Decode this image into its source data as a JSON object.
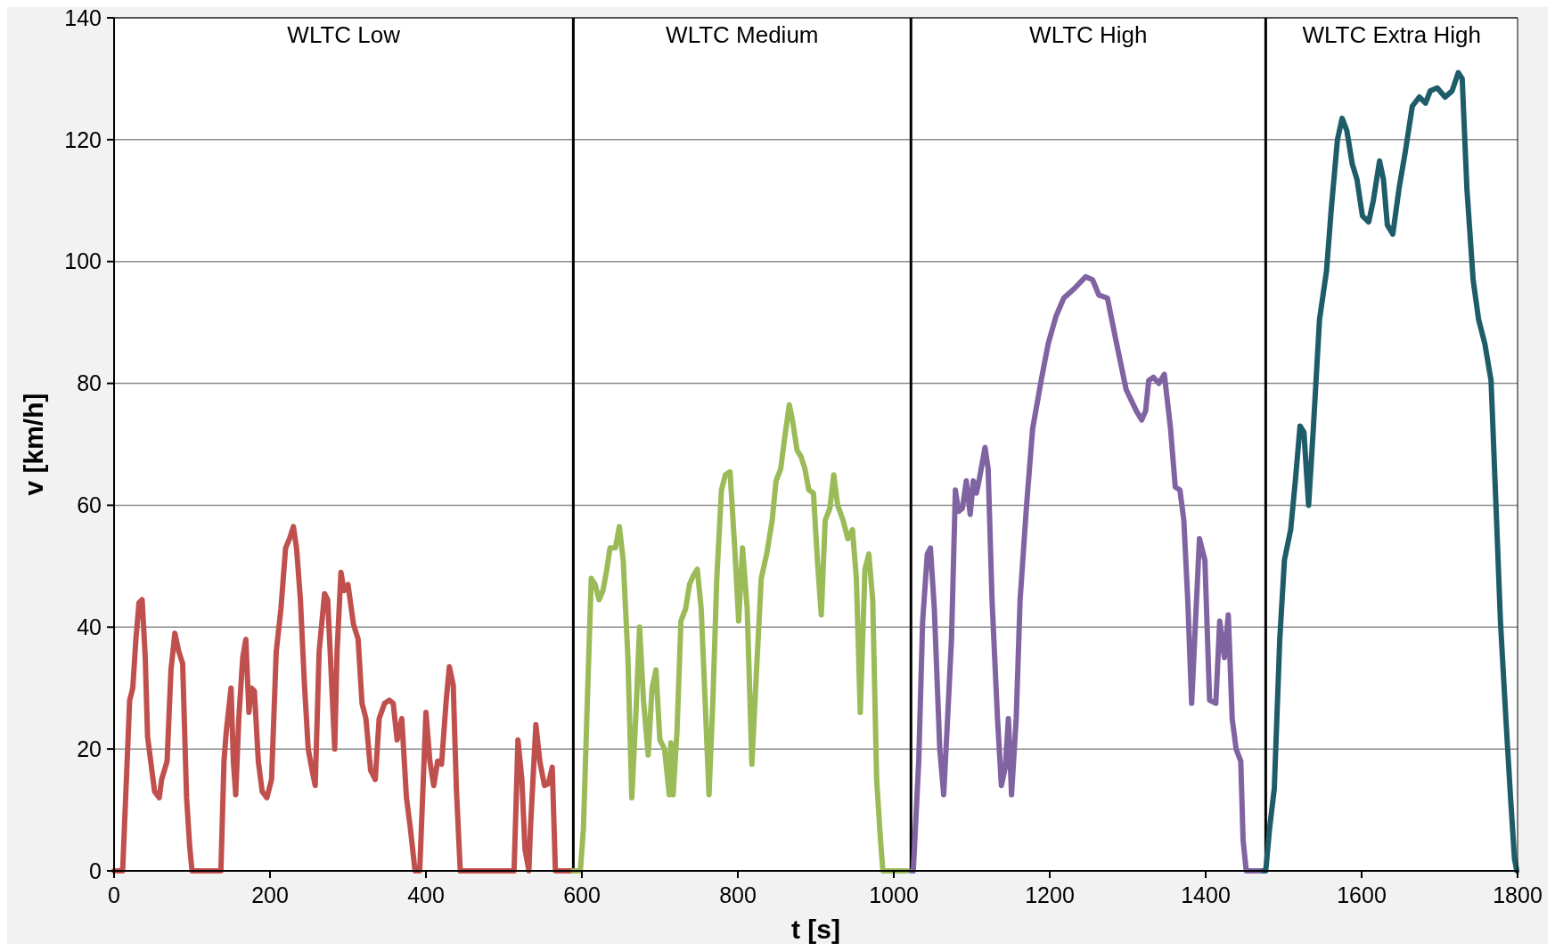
{
  "chart_data": {
    "type": "line",
    "xlabel": "t [s]",
    "ylabel": "v [km/h]",
    "xlim": [
      0,
      1800
    ],
    "xticks": [
      0,
      200,
      400,
      600,
      800,
      1000,
      1200,
      1400,
      1600,
      1800
    ],
    "ylim": [
      0,
      140
    ],
    "yticks": [
      0,
      20,
      40,
      60,
      80,
      100,
      120,
      140
    ],
    "grid": "y",
    "marker": "none",
    "line_style": "solid",
    "series": [
      {
        "color": "#c0504d",
        "x": [
          0,
          11,
          20,
          24,
          28,
          32,
          36,
          40,
          43,
          47,
          52,
          58,
          61,
          68,
          73,
          78,
          83,
          88,
          93,
          97,
          100,
          137,
          141,
          144,
          150,
          153,
          156,
          160,
          165,
          169,
          173,
          176,
          180,
          185,
          190,
          196,
          202,
          208,
          214,
          220,
          225,
          230,
          234,
          239,
          244,
          249,
          254,
          258,
          263,
          270,
          274,
          279,
          283,
          286,
          291,
          295,
          300,
          307,
          313,
          318,
          323,
          329,
          335,
          340,
          347,
          353,
          358,
          363,
          369,
          375,
          380,
          386,
          392,
          400,
          405,
          410,
          415,
          420,
          426,
          430,
          435,
          439,
          444,
          513,
          518,
          523,
          527,
          532,
          534,
          541,
          546,
          552,
          557,
          562,
          566,
          588
        ],
        "values": [
          0,
          0,
          28,
          30,
          38,
          44,
          44.5,
          35,
          22,
          18,
          13,
          12,
          15,
          18,
          33,
          39,
          36,
          34,
          12,
          4,
          0,
          0,
          18,
          23,
          30,
          18,
          12.5,
          25,
          35,
          38,
          26,
          30,
          29.5,
          18,
          13,
          12,
          15,
          36,
          43,
          53,
          54.5,
          56.5,
          53,
          44.5,
          31,
          20,
          16.5,
          14,
          36,
          45.5,
          44.5,
          31,
          20,
          36,
          49,
          46,
          47,
          40.5,
          38,
          27.5,
          25,
          16.5,
          15,
          25,
          27.5,
          28,
          27.5,
          21.5,
          25,
          12,
          7,
          0,
          0,
          26,
          18,
          14,
          18,
          17.5,
          28,
          33.5,
          30.5,
          13.5,
          0,
          0,
          21.5,
          15,
          3.6,
          0,
          7,
          24,
          18,
          14,
          14.3,
          17,
          0,
          0
        ]
      },
      {
        "color": "#9bbb59",
        "x": [
          589,
          598,
          602,
          607,
          612,
          617,
          622,
          627,
          632,
          636,
          643,
          648,
          653,
          659,
          664,
          669,
          674,
          679,
          685,
          690,
          695,
          700,
          706,
          712,
          714,
          717,
          722,
          727,
          733,
          738,
          743,
          748,
          753,
          758,
          763,
          768,
          773,
          779,
          784,
          790,
          796,
          801,
          806,
          812,
          818,
          824,
          830,
          837,
          844,
          849,
          855,
          860,
          866,
          870,
          876,
          881,
          886,
          891,
          897,
          902,
          907,
          912,
          918,
          923,
          928,
          935,
          941,
          947,
          952,
          957,
          963,
          968,
          973,
          978,
          983,
          986,
          1017
        ],
        "values": [
          0,
          0,
          7,
          28,
          48,
          47,
          44.5,
          46,
          49.5,
          53,
          53,
          56.5,
          51,
          35,
          12,
          25,
          40,
          28,
          19,
          30,
          33,
          21.5,
          20,
          12.5,
          21,
          12.5,
          23,
          41,
          43,
          47,
          48.5,
          49.5,
          43,
          28,
          12.5,
          28,
          48,
          62.5,
          65,
          65.5,
          53,
          41,
          53,
          43,
          17.5,
          33,
          48,
          52,
          57.5,
          64,
          66,
          71,
          76.5,
          74,
          69,
          68,
          66,
          62.5,
          62,
          51,
          42,
          57.5,
          59.5,
          65,
          60,
          57.5,
          54.5,
          56,
          48,
          26,
          49.5,
          52,
          44.5,
          15,
          5,
          0,
          0
        ]
      },
      {
        "color": "#8064a2",
        "x": [
          1022,
          1025,
          1032,
          1037,
          1043,
          1047,
          1052,
          1059,
          1064,
          1069,
          1074,
          1079,
          1083,
          1088,
          1093,
          1098,
          1102,
          1106,
          1110,
          1117,
          1121,
          1126,
          1133,
          1138,
          1143,
          1147,
          1151,
          1157,
          1162,
          1170,
          1178,
          1189,
          1198,
          1208,
          1218,
          1231,
          1246,
          1255,
          1263,
          1274,
          1285,
          1298,
          1311,
          1318,
          1323,
          1327,
          1333,
          1340,
          1347,
          1355,
          1361,
          1367,
          1372,
          1377,
          1382,
          1387,
          1392,
          1399,
          1405,
          1413,
          1418,
          1424,
          1429,
          1434,
          1439,
          1445,
          1448,
          1452,
          1472
        ],
        "values": [
          0,
          0,
          18,
          41,
          52,
          53,
          43,
          20,
          12.5,
          25,
          38,
          62.5,
          59,
          59.5,
          64,
          58.5,
          64,
          62,
          64.5,
          69.5,
          66,
          44.5,
          25,
          14,
          17,
          25,
          12.5,
          25,
          44.5,
          59.5,
          72.5,
          80.5,
          86.5,
          91,
          94,
          95.5,
          97.5,
          97,
          94.5,
          94,
          87,
          79,
          75.5,
          74,
          75.5,
          80.5,
          81,
          80,
          81.5,
          72.5,
          63,
          62.5,
          57.5,
          44.5,
          27.5,
          41,
          54.5,
          51,
          28,
          27.5,
          41,
          35,
          42,
          25,
          20,
          18,
          5,
          0,
          0
        ]
      },
      {
        "color": "#1f5c6a",
        "x": [
          1474,
          1477,
          1482,
          1488,
          1495,
          1501,
          1509,
          1515,
          1521,
          1526,
          1532,
          1538,
          1546,
          1555,
          1561,
          1569,
          1575,
          1581,
          1588,
          1594,
          1601,
          1609,
          1615,
          1623,
          1628,
          1633,
          1640,
          1648,
          1656,
          1665,
          1674,
          1682,
          1688,
          1697,
          1707,
          1716,
          1724,
          1729,
          1735,
          1743,
          1750,
          1758,
          1766,
          1772,
          1778,
          1785,
          1791,
          1796,
          1799
        ],
        "values": [
          0,
          0,
          7,
          13.5,
          38,
          51,
          56,
          64,
          73,
          72,
          60,
          72.5,
          90.5,
          98.5,
          108.5,
          120,
          123.5,
          121.5,
          116,
          113.5,
          107.5,
          106.5,
          110,
          116.5,
          113.5,
          106,
          104.5,
          112,
          118,
          125.5,
          127,
          126,
          128,
          128.5,
          127,
          128,
          131,
          130,
          112,
          97,
          90.5,
          86.5,
          80.5,
          61,
          41,
          25,
          12,
          2,
          0
        ]
      }
    ],
    "ref_lines": [
      {
        "axis": "x",
        "value": 589,
        "color": "#000000"
      },
      {
        "axis": "x",
        "value": 1022,
        "color": "#000000"
      },
      {
        "axis": "x",
        "value": 1477,
        "color": "#000000"
      }
    ],
    "annotations": [
      "WLTC Low",
      "WLTC Medium",
      "WLTC High",
      "WLTC Extra High"
    ]
  }
}
